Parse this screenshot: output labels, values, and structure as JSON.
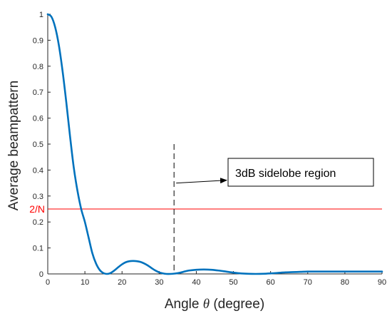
{
  "chart_data": {
    "type": "line",
    "xlabel_prefix": "Angle ",
    "xlabel_symbol": "θ",
    "xlabel_suffix": " (degree)",
    "ylabel": "Average beampattern",
    "xlim": [
      0,
      90
    ],
    "ylim": [
      0,
      1
    ],
    "xticks": [
      0,
      10,
      20,
      30,
      40,
      50,
      60,
      70,
      80,
      90
    ],
    "yticks": [
      0,
      0.1,
      0.2,
      0.3,
      0.4,
      0.5,
      0.6,
      0.7,
      0.8,
      0.9,
      1
    ],
    "ytick_labels": [
      "0",
      "0.1",
      "0.2",
      "0.3",
      "0.4",
      "0.5",
      "0.6",
      "0.7",
      "0.8",
      "0.9",
      "1"
    ],
    "xtick_labels": [
      "0",
      "10",
      "20",
      "30",
      "40",
      "50",
      "60",
      "70",
      "80",
      "90"
    ],
    "grid": false,
    "series": [
      {
        "color": "#0072BD",
        "x": [
          0,
          1,
          2,
          3,
          4,
          5,
          6,
          7,
          8,
          9,
          10,
          11,
          12,
          13,
          14,
          15,
          16,
          17,
          18,
          19,
          20,
          21,
          22,
          23,
          24,
          25,
          26,
          27,
          28,
          29,
          30,
          31,
          32,
          33,
          34,
          35,
          36,
          37,
          38,
          40,
          42,
          44,
          46,
          48,
          50,
          52,
          54,
          56,
          58,
          60,
          62,
          64,
          66,
          68,
          70,
          72,
          74,
          76,
          78,
          80,
          82,
          84,
          86,
          88,
          90
        ],
        "y": [
          1.0,
          0.99,
          0.95,
          0.88,
          0.78,
          0.66,
          0.53,
          0.41,
          0.32,
          0.25,
          0.2,
          0.14,
          0.08,
          0.04,
          0.015,
          0.003,
          0.0,
          0.004,
          0.014,
          0.026,
          0.037,
          0.045,
          0.049,
          0.05,
          0.049,
          0.046,
          0.04,
          0.032,
          0.022,
          0.013,
          0.006,
          0.002,
          0.0,
          0.0,
          0.001,
          0.003,
          0.006,
          0.01,
          0.013,
          0.016,
          0.017,
          0.016,
          0.013,
          0.009,
          0.005,
          0.002,
          0.0005,
          0.0,
          0.0005,
          0.002,
          0.004,
          0.006,
          0.007,
          0.008,
          0.009,
          0.009,
          0.009,
          0.009,
          0.009,
          0.009,
          0.009,
          0.009,
          0.009,
          0.009,
          0.009
        ]
      }
    ],
    "reference_line": {
      "y": 0.25,
      "label": "2/N",
      "color": "#FF0000"
    },
    "vertical_marker": {
      "x": 34,
      "y_top": 0.5
    },
    "annotation": {
      "text": "3dB sidelobe region",
      "arrow_from_y": 0.38
    }
  }
}
